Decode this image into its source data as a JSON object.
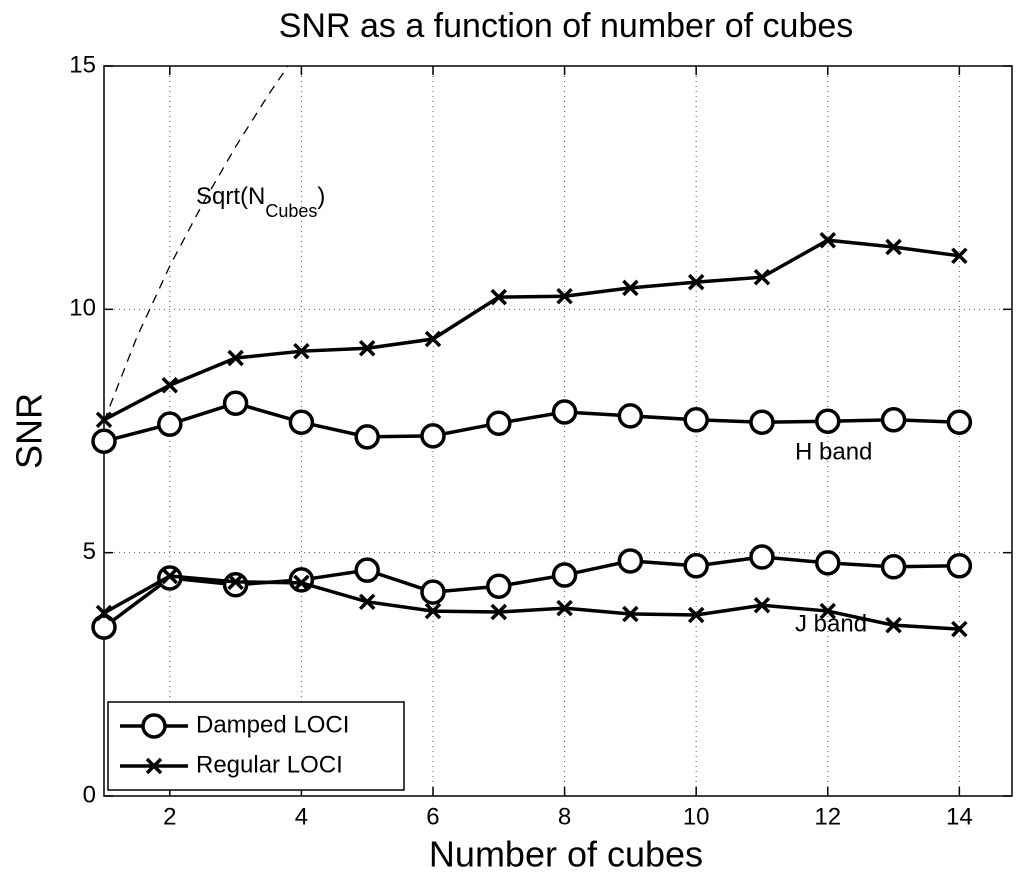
{
  "chart_data": {
    "type": "line",
    "title": "SNR as a function of number of cubes",
    "xlabel": "Number of cubes",
    "ylabel": "SNR",
    "x": [
      1,
      2,
      3,
      4,
      5,
      6,
      7,
      8,
      9,
      10,
      11,
      12,
      13,
      14
    ],
    "series": [
      {
        "name": "Damped LOCI",
        "marker": "o",
        "color": "#000000",
        "values": [
          7.29,
          7.64,
          8.07,
          7.68,
          7.38,
          7.4,
          7.66,
          7.89,
          7.81,
          7.73,
          7.68,
          7.7,
          7.73,
          7.68
        ]
      },
      {
        "name": "Regular LOCI",
        "marker": "x",
        "color": "#000000",
        "values": [
          7.73,
          8.44,
          9.0,
          9.14,
          9.2,
          9.39,
          10.25,
          10.27,
          10.44,
          10.56,
          10.66,
          11.42,
          11.28,
          11.1
        ]
      },
      {
        "marker": "o",
        "color": "#000000",
        "values": [
          3.47,
          4.48,
          4.34,
          4.44,
          4.64,
          4.19,
          4.31,
          4.54,
          4.83,
          4.73,
          4.91,
          4.79,
          4.71,
          4.73
        ]
      },
      {
        "marker": "x",
        "color": "#000000",
        "values": [
          3.76,
          4.52,
          4.4,
          4.38,
          3.99,
          3.8,
          3.78,
          3.86,
          3.74,
          3.72,
          3.92,
          3.8,
          3.51,
          3.43
        ]
      }
    ],
    "reference_curve": {
      "x": [
        1,
        1.5,
        2,
        2.5,
        3,
        3.5,
        4
      ],
      "values": [
        7.7,
        9.43,
        10.89,
        12.17,
        13.34,
        14.41,
        15.4
      ],
      "dashed": true
    },
    "annotations": {
      "sqrt": [
        "Sqrt(N",
        "Cubes",
        ")"
      ],
      "h_band": "H band",
      "j_band": "J band"
    },
    "xlim": [
      1,
      14.8
    ],
    "ylim": [
      0,
      15
    ],
    "xticks": [
      2,
      4,
      6,
      8,
      10,
      12,
      14
    ],
    "yticks": [
      0,
      5,
      10,
      15
    ],
    "grid": true,
    "legend": "lower left"
  }
}
